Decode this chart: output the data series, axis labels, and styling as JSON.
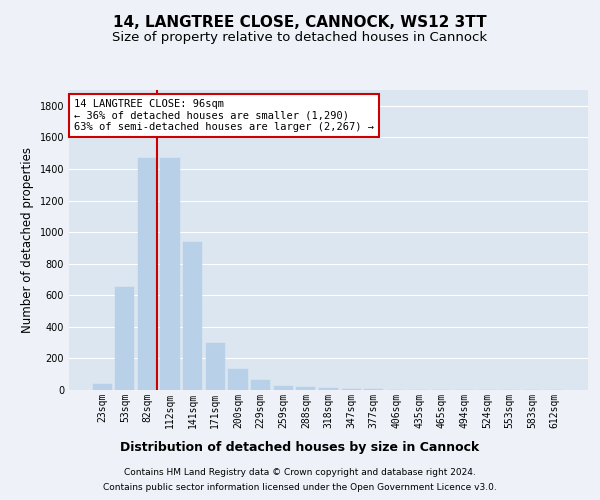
{
  "title": "14, LANGTREE CLOSE, CANNOCK, WS12 3TT",
  "subtitle": "Size of property relative to detached houses in Cannock",
  "xlabel": "Distribution of detached houses by size in Cannock",
  "ylabel": "Number of detached properties",
  "categories": [
    "23sqm",
    "53sqm",
    "82sqm",
    "112sqm",
    "141sqm",
    "171sqm",
    "200sqm",
    "229sqm",
    "259sqm",
    "288sqm",
    "318sqm",
    "347sqm",
    "377sqm",
    "406sqm",
    "435sqm",
    "465sqm",
    "494sqm",
    "524sqm",
    "553sqm",
    "583sqm",
    "612sqm"
  ],
  "values": [
    40,
    655,
    1470,
    1470,
    940,
    295,
    135,
    65,
    25,
    18,
    10,
    5,
    5,
    3,
    2,
    1,
    1,
    0,
    0,
    0,
    0
  ],
  "bar_color": "#b8d0e8",
  "bar_edgecolor": "#b8d0e8",
  "marker_bin_index": 2,
  "marker_color": "#cc0000",
  "annotation_text": "14 LANGTREE CLOSE: 96sqm\n← 36% of detached houses are smaller (1,290)\n63% of semi-detached houses are larger (2,267) →",
  "annotation_box_color": "#ffffff",
  "annotation_box_edgecolor": "#cc0000",
  "ylim": [
    0,
    1900
  ],
  "yticks": [
    0,
    200,
    400,
    600,
    800,
    1000,
    1200,
    1400,
    1600,
    1800
  ],
  "background_color": "#eef2f8",
  "footer_line1": "Contains HM Land Registry data © Crown copyright and database right 2024.",
  "footer_line2": "Contains public sector information licensed under the Open Government Licence v3.0.",
  "title_fontsize": 11,
  "subtitle_fontsize": 9.5,
  "xlabel_fontsize": 9,
  "ylabel_fontsize": 8.5,
  "tick_fontsize": 7,
  "annotation_fontsize": 7.5,
  "footer_fontsize": 6.5,
  "grid_color": "#ffffff",
  "axes_bg_color": "#dce6f0"
}
